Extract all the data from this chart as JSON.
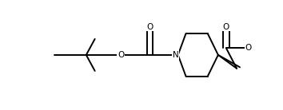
{
  "bg_color": "#ffffff",
  "lw": 1.4,
  "lc": "black",
  "fs": 7.5,
  "figsize": [
    3.54,
    1.38
  ],
  "dpi": 100,
  "xlim": [
    0.0,
    1.0
  ],
  "ylim": [
    0.0,
    1.0
  ]
}
